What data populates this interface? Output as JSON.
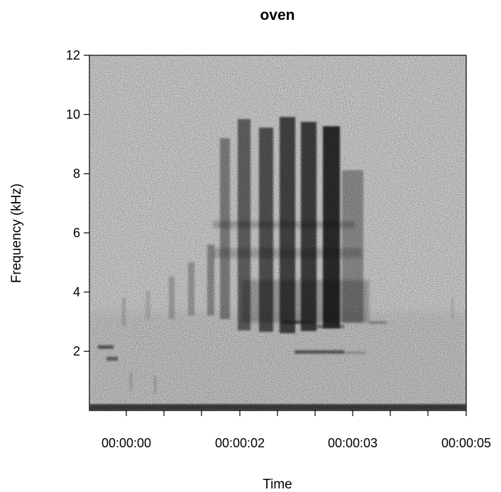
{
  "chart_data": {
    "type": "heatmap",
    "title": "oven",
    "xlabel": "Time",
    "ylabel": "Frequency (kHz)",
    "x_ticks": [
      "00:00:00",
      "00:00:02",
      "00:00:03",
      "00:00:05"
    ],
    "y_ticks": [
      2,
      4,
      6,
      8,
      10,
      12
    ],
    "ylim": [
      0,
      12
    ],
    "colormap": [
      "#ffffff",
      "#000000"
    ],
    "grid": false,
    "legend": "none"
  }
}
